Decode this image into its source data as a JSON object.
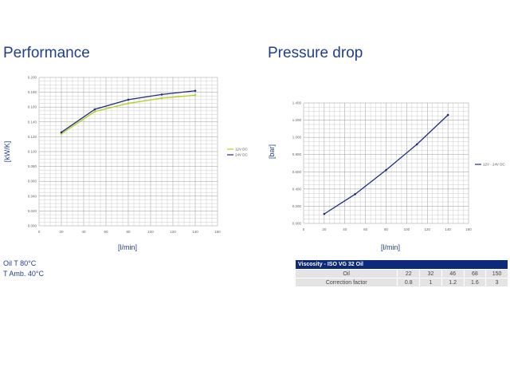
{
  "texts": {
    "perf_title": "Performance",
    "pd_title": "Pressure drop",
    "note1": "Oil T 80°C",
    "note2": "T Amb. 40°C"
  },
  "colors": {
    "s12": "#b5cf1a",
    "s24": "#1a2f86",
    "pd": "#1a2f86"
  },
  "viscosity": {
    "title": "Viscosity - ISO VG 32 Oil",
    "row1_label": "Oil",
    "row1": [
      "22",
      "32",
      "46",
      "68",
      "150"
    ],
    "row2_label": "Correction factor",
    "row2": [
      "0.8",
      "1",
      "1.2",
      "1.6",
      "3"
    ]
  },
  "chart_data": [
    {
      "type": "line",
      "title": "Performance",
      "xlabel": "[l/min]",
      "ylabel": "[kW/K]",
      "xlim": [
        0,
        160
      ],
      "ylim": [
        0,
        0.2
      ],
      "xticks": [
        "0",
        "20",
        "40",
        "60",
        "80",
        "100",
        "120",
        "140",
        "160"
      ],
      "yticks": [
        "0.000",
        "0.020",
        "0.040",
        "0.060",
        "0.080",
        "0.100",
        "0.120",
        "0.140",
        "0.160",
        "0.180",
        "0.200"
      ],
      "grid": true,
      "legend": "right",
      "series": [
        {
          "name": "12V DC",
          "x": [
            20,
            50,
            80,
            110,
            140
          ],
          "values": [
            0.124,
            0.154,
            0.165,
            0.172,
            0.176
          ]
        },
        {
          "name": "24V DC",
          "x": [
            20,
            50,
            80,
            110,
            140
          ],
          "values": [
            0.126,
            0.157,
            0.17,
            0.177,
            0.182
          ]
        }
      ]
    },
    {
      "type": "line",
      "title": "Pressure drop",
      "xlabel": "[l/min]",
      "ylabel": "[bar]",
      "xlim": [
        0,
        160
      ],
      "ylim": [
        0,
        1.4
      ],
      "xticks": [
        "0",
        "20",
        "40",
        "60",
        "80",
        "100",
        "120",
        "140",
        "160"
      ],
      "yticks": [
        "0.000",
        "0.200",
        "0.400",
        "0.600",
        "0.800",
        "1.000",
        "1.200",
        "1.400"
      ],
      "grid": true,
      "legend": "right",
      "series": [
        {
          "name": "12V - 24V DC",
          "x": [
            20,
            50,
            80,
            110,
            140
          ],
          "values": [
            0.11,
            0.34,
            0.62,
            0.92,
            1.26
          ]
        }
      ]
    }
  ]
}
